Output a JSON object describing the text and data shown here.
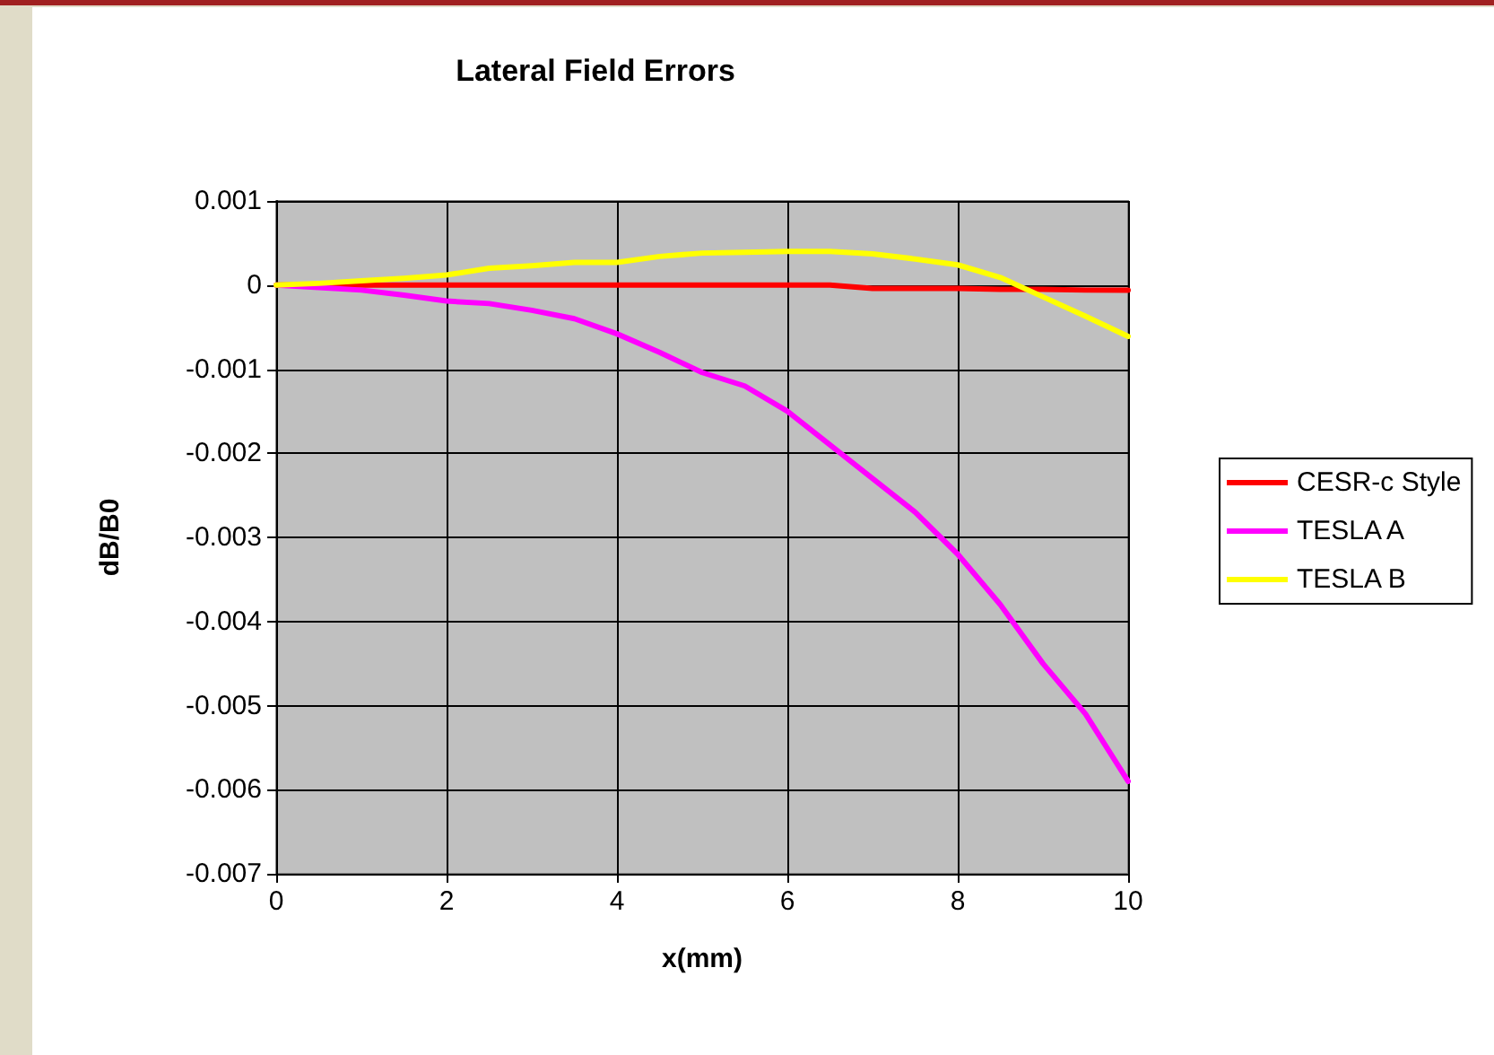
{
  "chart_data": {
    "type": "line",
    "title": "Lateral Field Errors",
    "xlabel": "x(mm)",
    "ylabel": "dB/B0",
    "x": [
      0,
      0.5,
      1,
      1.5,
      2,
      2.5,
      3,
      3.5,
      4,
      4.5,
      5,
      5.5,
      6,
      6.5,
      7,
      7.5,
      8,
      8.5,
      9,
      9.5,
      10
    ],
    "series": [
      {
        "name": "CESR-c Style",
        "color": "#ff0000",
        "values": [
          0,
          0,
          0,
          0,
          0,
          0,
          0,
          0,
          0,
          0,
          0,
          0,
          0,
          0,
          -4e-05,
          -4e-05,
          -4e-05,
          -5e-05,
          -5e-05,
          -6e-05,
          -6e-05
        ]
      },
      {
        "name": "TESLA A",
        "color": "#ff00ff",
        "values": [
          0,
          -3e-05,
          -6e-05,
          -0.00012,
          -0.00019,
          -0.00022,
          -0.0003,
          -0.0004,
          -0.00058,
          -0.0008,
          -0.00104,
          -0.0012,
          -0.0015,
          -0.0019,
          -0.0023,
          -0.0027,
          -0.0032,
          -0.0038,
          -0.0045,
          -0.0051,
          -0.0059
        ]
      },
      {
        "name": "TESLA B",
        "color": "#ffff00",
        "values": [
          0,
          2e-05,
          5e-05,
          8e-05,
          0.00012,
          0.0002,
          0.00023,
          0.00027,
          0.00027,
          0.00034,
          0.00038,
          0.00039,
          0.0004,
          0.0004,
          0.00037,
          0.00031,
          0.00024,
          9e-05,
          -0.00014,
          -0.00037,
          -0.00061
        ]
      }
    ],
    "xlim": [
      0,
      10
    ],
    "xticks": [
      0,
      2,
      4,
      6,
      8,
      10
    ],
    "ylim": [
      -0.007,
      0.001
    ],
    "yticks": [
      -0.007,
      -0.006,
      -0.005,
      -0.004,
      -0.003,
      -0.002,
      -0.001,
      0,
      0.001
    ],
    "grid": true,
    "legend": "right",
    "marker": "none",
    "line_style": "solid"
  }
}
